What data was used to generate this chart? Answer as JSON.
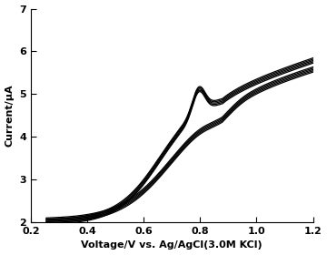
{
  "xlim": [
    0.2,
    1.2
  ],
  "ylim": [
    2.0,
    7.0
  ],
  "xticks": [
    0.2,
    0.4,
    0.6,
    0.8,
    1.0,
    1.2
  ],
  "yticks": [
    2,
    3,
    4,
    5,
    6,
    7
  ],
  "xlabel": "Voltage/V vs. Ag/AgCl(3.0M KCl)",
  "ylabel": "Current/μA",
  "line_color": "black",
  "n_scans": 5,
  "background_color": "white",
  "xlabel_fontsize": 8,
  "ylabel_fontsize": 8,
  "tick_fontsize": 8
}
